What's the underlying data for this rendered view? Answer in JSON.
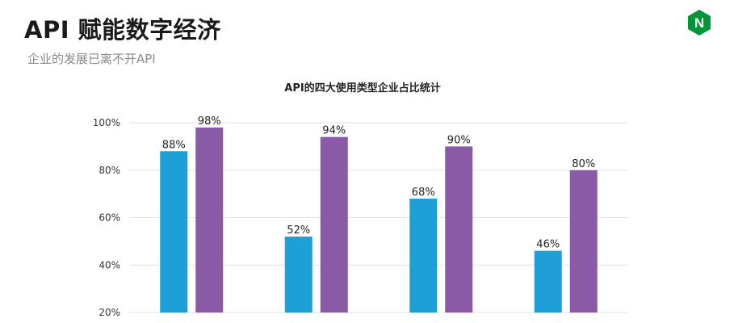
{
  "slide": {
    "title": "API 赋能数字经济",
    "subtitle": "企业的发展已离不开API"
  },
  "logo": {
    "letter": "N",
    "color": "#009639"
  },
  "chart_data": {
    "type": "bar",
    "title": "API的四大使用类型企业占比统计",
    "xlabel": "",
    "ylabel": "",
    "categories": [
      "",
      "",
      "",
      ""
    ],
    "series": [
      {
        "values": [
          88,
          52,
          68,
          46
        ],
        "color": "#1f9fd8"
      },
      {
        "values": [
          98,
          94,
          90,
          80
        ],
        "color": "#8a5aa6"
      }
    ],
    "ylim": [
      20,
      100
    ],
    "yticks": [
      20,
      40,
      60,
      80,
      100
    ],
    "ytick_labels": [
      "20%",
      "40%",
      "60%",
      "80%",
      "100%"
    ],
    "data_labels": [
      [
        "88%",
        "52%",
        "68%",
        "46%"
      ],
      [
        "98%",
        "94%",
        "90%",
        "80%"
      ]
    ],
    "grid": true,
    "legend": "none"
  }
}
